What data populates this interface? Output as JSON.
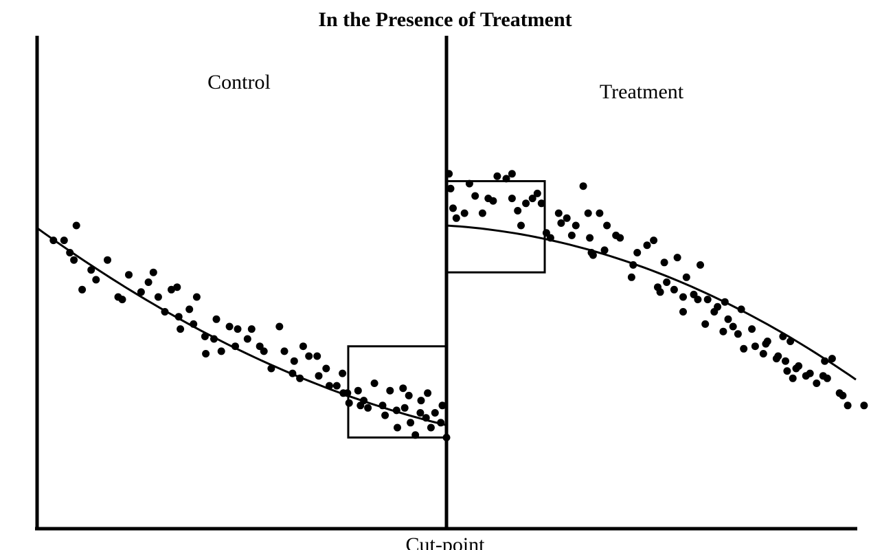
{
  "chart_data": {
    "type": "scatter",
    "title": "In the Presence of Treatment",
    "xlabel": "Cut-point",
    "ylabel": "",
    "xlim": [
      0,
      100
    ],
    "ylim": [
      0,
      100
    ],
    "grid": false,
    "cutpoint_x": 50,
    "regions": [
      {
        "name": "control_label",
        "label": "Control"
      },
      {
        "name": "treatment_label",
        "label": "Treatment"
      }
    ],
    "series": [
      {
        "points": [
          [
            2,
            58.5
          ],
          [
            3.3,
            58.5
          ],
          [
            4,
            56
          ],
          [
            4.5,
            54.5
          ],
          [
            4.8,
            61.5
          ],
          [
            5.5,
            48.5
          ],
          [
            6.6,
            52.5
          ],
          [
            7.2,
            50.5
          ],
          [
            8.6,
            54.5
          ],
          [
            9.9,
            47
          ],
          [
            10.4,
            46.5
          ],
          [
            11.2,
            51.5
          ],
          [
            12.7,
            48
          ],
          [
            13.6,
            50
          ],
          [
            14.2,
            52
          ],
          [
            14.8,
            47
          ],
          [
            15.6,
            44
          ],
          [
            16.4,
            48.5
          ],
          [
            17.1,
            49
          ],
          [
            17.3,
            43
          ],
          [
            17.5,
            40.5
          ],
          [
            18.6,
            44.5
          ],
          [
            19.1,
            41.5
          ],
          [
            19.5,
            47
          ],
          [
            20.5,
            39
          ],
          [
            20.6,
            35.5
          ],
          [
            21.6,
            38.5
          ],
          [
            21.9,
            42.5
          ],
          [
            22.5,
            36
          ],
          [
            23.5,
            41
          ],
          [
            24.2,
            37
          ],
          [
            24.5,
            40.5
          ],
          [
            25.7,
            38.5
          ],
          [
            26.2,
            40.5
          ],
          [
            27.2,
            37
          ],
          [
            27.7,
            36
          ],
          [
            28.6,
            32.5
          ],
          [
            29.6,
            41
          ],
          [
            30.2,
            36
          ],
          [
            31.2,
            31.5
          ],
          [
            31.4,
            34
          ],
          [
            32.1,
            30.5
          ],
          [
            32.5,
            37
          ],
          [
            33.2,
            35
          ],
          [
            34.2,
            35
          ],
          [
            34.4,
            31
          ],
          [
            35.3,
            32.5
          ],
          [
            35.7,
            29
          ],
          [
            36.6,
            29
          ],
          [
            37.3,
            31.5
          ],
          [
            37.4,
            27.5
          ],
          [
            37.9,
            27.5
          ],
          [
            38.1,
            25.5
          ],
          [
            39.2,
            28
          ],
          [
            39.5,
            25
          ],
          [
            39.9,
            26
          ],
          [
            40.4,
            24.5
          ],
          [
            41.2,
            29.5
          ],
          [
            42.2,
            25
          ],
          [
            42.5,
            23
          ],
          [
            43.1,
            28
          ],
          [
            43.9,
            24
          ],
          [
            44,
            20.5
          ],
          [
            44.7,
            28.5
          ],
          [
            44.9,
            24.5
          ],
          [
            45.4,
            27
          ],
          [
            45.6,
            21.5
          ],
          [
            46.2,
            19
          ],
          [
            46.8,
            23.5
          ],
          [
            46.9,
            26
          ],
          [
            47.5,
            22.5
          ],
          [
            47.7,
            27.5
          ],
          [
            48.1,
            20.5
          ],
          [
            48.6,
            23.5
          ],
          [
            49.3,
            21.5
          ],
          [
            49.5,
            25
          ],
          [
            50,
            18.5
          ],
          [
            50.3,
            72
          ],
          [
            50.5,
            69
          ],
          [
            50.8,
            65
          ],
          [
            51.2,
            63
          ],
          [
            52.2,
            64
          ],
          [
            52.8,
            70
          ],
          [
            53.5,
            67.5
          ],
          [
            54.4,
            64
          ],
          [
            55.1,
            67
          ],
          [
            55.7,
            66.5
          ],
          [
            56.2,
            71.5
          ],
          [
            57.3,
            71
          ],
          [
            58,
            67
          ],
          [
            58,
            72
          ],
          [
            58.7,
            64.5
          ],
          [
            59.1,
            61.5
          ],
          [
            59.7,
            66
          ],
          [
            60.5,
            67
          ],
          [
            61.1,
            68
          ],
          [
            61.6,
            66
          ],
          [
            62.2,
            60
          ],
          [
            62.7,
            59
          ],
          [
            63.7,
            64
          ],
          [
            64,
            62
          ],
          [
            64.7,
            63
          ],
          [
            65.3,
            59.5
          ],
          [
            65.8,
            61.5
          ],
          [
            66.7,
            69.5
          ],
          [
            67.3,
            64
          ],
          [
            67.5,
            59
          ],
          [
            67.7,
            56
          ],
          [
            67.9,
            55.5
          ],
          [
            68.7,
            64
          ],
          [
            69.3,
            56.5
          ],
          [
            69.6,
            61.5
          ],
          [
            70.7,
            59.5
          ],
          [
            71.2,
            59
          ],
          [
            72.6,
            51
          ],
          [
            72.8,
            53.5
          ],
          [
            73.3,
            56
          ],
          [
            74.5,
            57.5
          ],
          [
            75.3,
            58.5
          ],
          [
            75.8,
            49
          ],
          [
            76.1,
            48
          ],
          [
            76.6,
            54
          ],
          [
            76.9,
            50
          ],
          [
            77.8,
            48.5
          ],
          [
            78.2,
            55
          ],
          [
            78.9,
            47
          ],
          [
            78.9,
            44
          ],
          [
            79.3,
            51
          ],
          [
            80.2,
            47.5
          ],
          [
            80.7,
            46.5
          ],
          [
            81,
            53.5
          ],
          [
            81.6,
            41.5
          ],
          [
            81.9,
            46.5
          ],
          [
            82.7,
            44
          ],
          [
            83.1,
            45
          ],
          [
            83.8,
            40
          ],
          [
            84,
            46
          ],
          [
            84.4,
            42.5
          ],
          [
            85,
            41
          ],
          [
            85.6,
            39.5
          ],
          [
            86,
            44.5
          ],
          [
            86.3,
            36.5
          ],
          [
            87.3,
            40.5
          ],
          [
            87.7,
            37
          ],
          [
            88.7,
            35.5
          ],
          [
            89,
            37.5
          ],
          [
            89.2,
            38
          ],
          [
            90.3,
            34.5
          ],
          [
            90.5,
            35
          ],
          [
            91.1,
            39
          ],
          [
            91.4,
            34
          ],
          [
            91.6,
            32
          ],
          [
            92,
            38
          ],
          [
            92.3,
            30.5
          ],
          [
            92.7,
            32.5
          ],
          [
            93,
            33
          ],
          [
            93.9,
            31
          ],
          [
            94.4,
            31.5
          ],
          [
            95.2,
            29.5
          ],
          [
            96,
            31
          ],
          [
            96.2,
            34
          ],
          [
            96.5,
            30.5
          ],
          [
            97.1,
            34.5
          ],
          [
            98,
            27.5
          ],
          [
            98.4,
            27
          ],
          [
            99,
            25
          ],
          [
            101,
            25
          ]
        ]
      }
    ],
    "fit_lines": [
      {
        "x": [
          0,
          50
        ],
        "a": 61,
        "b": -1.2,
        "c": 0.008,
        "x0": 0
      },
      {
        "x": [
          50,
          100
        ],
        "a": 61.5,
        "b": -0.1,
        "c": -0.0105,
        "x0": 50
      }
    ],
    "boxes": [
      {
        "x": [
          38,
          50
        ],
        "y": [
          18.5,
          37
        ]
      },
      {
        "x": [
          50,
          62
        ],
        "y": [
          52,
          70.5
        ]
      }
    ]
  }
}
